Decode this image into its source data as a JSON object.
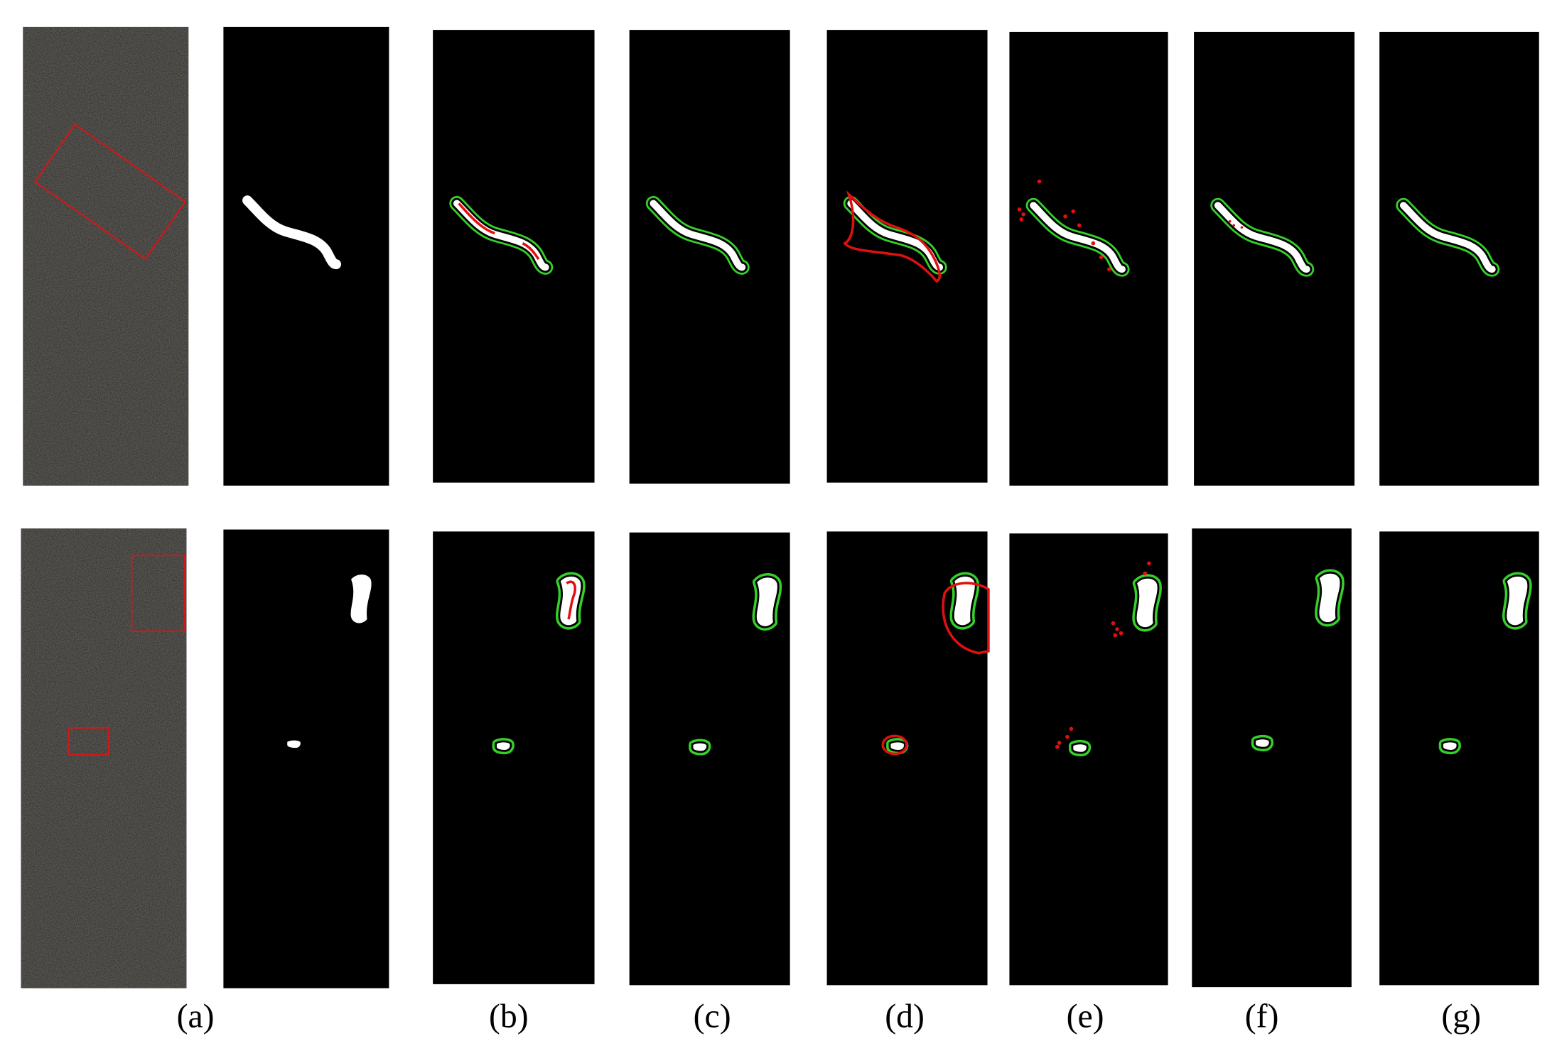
{
  "panel_labels": [
    "(a)",
    "(b)",
    "(c)",
    "(d)",
    "(e)",
    "(f)",
    "(g)"
  ]
}
